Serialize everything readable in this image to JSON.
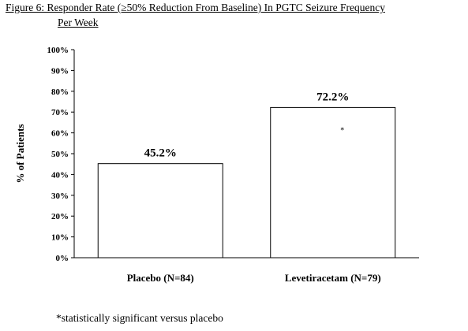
{
  "figure": {
    "title_line1": "Figure 6: Responder Rate (≥50% Reduction From Baseline) In PGTC Seizure Frequency",
    "title_line2": "Per Week",
    "footnote": "*statistically significant versus placebo"
  },
  "chart_data": {
    "type": "bar",
    "title": "Figure 6: Responder Rate (≥50% Reduction From Baseline) In PGTC Seizure Frequency Per Week",
    "categories": [
      "Placebo (N=84)",
      "Levetiracetam (N=79)"
    ],
    "values": [
      45.2,
      72.2
    ],
    "data_labels": [
      "45.2%",
      "72.2%"
    ],
    "annotations": [
      "",
      "*"
    ],
    "xlabel": "",
    "ylabel": "% of Patients",
    "ylim": [
      0,
      100
    ],
    "y_ticks": [
      0,
      10,
      20,
      30,
      40,
      50,
      60,
      70,
      80,
      90,
      100
    ],
    "y_tick_labels": [
      "0%",
      "10%",
      "20%",
      "30%",
      "40%",
      "50%",
      "60%",
      "70%",
      "80%",
      "90%",
      "100%"
    ],
    "grid": false,
    "legend": "none",
    "bar_fill": "#ffffff",
    "bar_stroke": "#000000"
  }
}
